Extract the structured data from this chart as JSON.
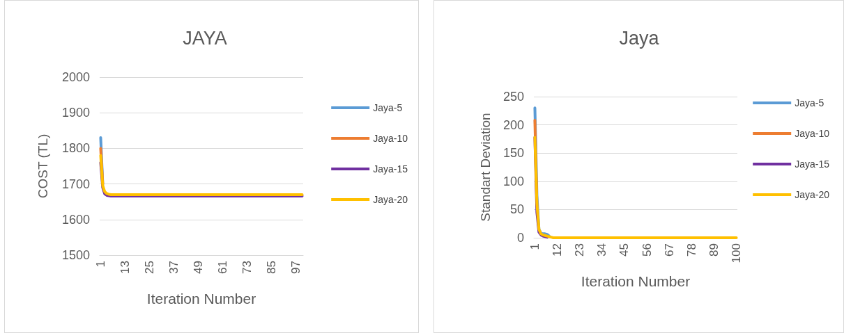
{
  "chart_data": [
    {
      "type": "line",
      "title": "JAYA",
      "xlabel": "Iteration Number",
      "ylabel": "COST (TL)",
      "ylim": [
        1500,
        2000
      ],
      "yticks": [
        1500,
        1600,
        1700,
        1800,
        1900,
        2000
      ],
      "grid": "y",
      "legend": "right",
      "marker": "none",
      "line_style": "solid",
      "categories": [
        "1",
        null,
        null,
        null,
        null,
        null,
        null,
        null,
        null,
        null,
        null,
        null,
        "13",
        null,
        null,
        null,
        null,
        null,
        null,
        null,
        null,
        null,
        null,
        null,
        "25",
        null,
        null,
        null,
        null,
        null,
        null,
        null,
        null,
        null,
        null,
        null,
        "37",
        null,
        null,
        null,
        null,
        null,
        null,
        null,
        null,
        null,
        null,
        null,
        "49",
        null,
        null,
        null,
        null,
        null,
        null,
        null,
        null,
        null,
        null,
        null,
        "61",
        null,
        null,
        null,
        null,
        null,
        null,
        null,
        null,
        null,
        null,
        null,
        "73",
        null,
        null,
        null,
        null,
        null,
        null,
        null,
        null,
        null,
        null,
        null,
        "85",
        null,
        null,
        null,
        null,
        null,
        null,
        null,
        null,
        null,
        null,
        null,
        "97",
        null,
        null,
        null
      ],
      "series": [
        {
          "name": "Jaya-5",
          "color": "#5b9bd5",
          "values": [
            1830,
            1700,
            null,
            null,
            null,
            null,
            null,
            null,
            null,
            null,
            null,
            null,
            null,
            null,
            null,
            null,
            null,
            null,
            null,
            null,
            null,
            null,
            null,
            null,
            null,
            null,
            null,
            null,
            null,
            null,
            null,
            null,
            null,
            null,
            null,
            null,
            null,
            null,
            null,
            null,
            null,
            null,
            null,
            null,
            null,
            null,
            null,
            null,
            null,
            null,
            null,
            null,
            null,
            null,
            null,
            null,
            null,
            null,
            null,
            null,
            null,
            null,
            null,
            null,
            null,
            null,
            null,
            null,
            null,
            null,
            null,
            null,
            null,
            null,
            null,
            null,
            null,
            null,
            null,
            null,
            null,
            null,
            null,
            null,
            null,
            null,
            null,
            null,
            null,
            null,
            null,
            null,
            null,
            null,
            null,
            null,
            null,
            null,
            null,
            null
          ]
        },
        {
          "name": "Jaya-10",
          "color": "#ed7d31",
          "values": [
            1800,
            1700,
            null,
            null,
            null,
            null,
            null,
            null,
            null,
            null,
            null,
            null,
            null,
            null,
            null,
            null,
            null,
            null,
            null,
            null,
            null,
            null,
            null,
            null,
            null,
            null,
            null,
            null,
            null,
            null,
            null,
            null,
            null,
            null,
            null,
            null,
            null,
            null,
            null,
            null,
            null,
            null,
            null,
            null,
            null,
            null,
            null,
            null,
            null,
            null,
            null,
            null,
            null,
            null,
            null,
            null,
            null,
            null,
            null,
            null,
            null,
            null,
            null,
            null,
            null,
            null,
            null,
            null,
            null,
            null,
            null,
            null,
            null,
            null,
            null,
            null,
            null,
            null,
            null,
            null,
            null,
            null,
            null,
            null,
            null,
            null,
            null,
            null,
            null,
            null,
            null,
            null,
            null,
            null,
            null,
            null,
            null,
            null,
            null,
            null
          ]
        },
        {
          "name": "Jaya-15",
          "color": "#7030a0",
          "values": [
            1760,
            1690,
            1672,
            1668,
            1667,
            1666,
            1666,
            1666,
            1666,
            1666,
            1666,
            1666,
            1666,
            1666,
            1666,
            1666,
            1666,
            1666,
            1666,
            1666,
            1666,
            1666,
            1666,
            1666,
            1666,
            1666,
            1666,
            1666,
            1666,
            1666,
            1666,
            1666,
            1666,
            1666,
            1666,
            1666,
            1666,
            1666,
            1666,
            1666,
            1666,
            1666,
            1666,
            1666,
            1666,
            1666,
            1666,
            1666,
            1666,
            1666,
            1666,
            1666,
            1666,
            1666,
            1666,
            1666,
            1666,
            1666,
            1666,
            1666,
            1666,
            1666,
            1666,
            1666,
            1666,
            1666,
            1666,
            1666,
            1666,
            1666,
            1666,
            1666,
            1666,
            1666,
            1666,
            1666,
            1666,
            1666,
            1666,
            1666,
            1666,
            1666,
            1666,
            1666,
            1666,
            1666,
            1666,
            1666,
            1666,
            1666,
            1666,
            1666,
            1666,
            1666,
            1666,
            1666,
            1666,
            1666,
            1666,
            1666
          ]
        },
        {
          "name": "Jaya-20",
          "color": "#ffc000",
          "values": [
            1780,
            1695,
            1678,
            1673,
            1671,
            1670,
            1670,
            1670,
            1670,
            1670,
            1670,
            1670,
            1670,
            1670,
            1670,
            1670,
            1670,
            1670,
            1670,
            1670,
            1670,
            1670,
            1670,
            1670,
            1670,
            1670,
            1670,
            1670,
            1670,
            1670,
            1670,
            1670,
            1670,
            1670,
            1670,
            1670,
            1670,
            1670,
            1670,
            1670,
            1670,
            1670,
            1670,
            1670,
            1670,
            1670,
            1670,
            1670,
            1670,
            1670,
            1670,
            1670,
            1670,
            1670,
            1670,
            1670,
            1670,
            1670,
            1670,
            1670,
            1670,
            1670,
            1670,
            1670,
            1670,
            1670,
            1670,
            1670,
            1670,
            1670,
            1670,
            1670,
            1670,
            1670,
            1670,
            1670,
            1670,
            1670,
            1670,
            1670,
            1670,
            1670,
            1670,
            1670,
            1670,
            1670,
            1670,
            1670,
            1670,
            1670,
            1670,
            1670,
            1670,
            1670,
            1670,
            1670,
            1670,
            1670,
            1670,
            1670
          ]
        }
      ]
    },
    {
      "type": "line",
      "title": "Jaya",
      "xlabel": "Iteration Number",
      "ylabel": "Standart Deviation",
      "ylim": [
        0,
        250
      ],
      "yticks": [
        0,
        50,
        100,
        150,
        200,
        250
      ],
      "grid": "y",
      "legend": "right",
      "marker": "none",
      "line_style": "solid",
      "categories": [
        "1",
        null,
        null,
        null,
        null,
        null,
        null,
        null,
        null,
        null,
        null,
        "12",
        null,
        null,
        null,
        null,
        null,
        null,
        null,
        null,
        null,
        null,
        "23",
        null,
        null,
        null,
        null,
        null,
        null,
        null,
        null,
        null,
        null,
        "34",
        null,
        null,
        null,
        null,
        null,
        null,
        null,
        null,
        null,
        null,
        "45",
        null,
        null,
        null,
        null,
        null,
        null,
        null,
        null,
        null,
        null,
        "56",
        null,
        null,
        null,
        null,
        null,
        null,
        null,
        null,
        null,
        null,
        "67",
        null,
        null,
        null,
        null,
        null,
        null,
        null,
        null,
        null,
        null,
        "78",
        null,
        null,
        null,
        null,
        null,
        null,
        null,
        null,
        null,
        null,
        "89",
        null,
        null,
        null,
        null,
        null,
        null,
        null,
        null,
        null,
        null,
        "100"
      ],
      "series": [
        {
          "name": "Jaya-5",
          "color": "#5b9bd5",
          "values": [
            230,
            75,
            15,
            8,
            7,
            7,
            6,
            3,
            null,
            null,
            null,
            null,
            null,
            null,
            null,
            null,
            null,
            null,
            null,
            null,
            null,
            null,
            null,
            null,
            null,
            null,
            null,
            null,
            null,
            null,
            null,
            null,
            null,
            null,
            null,
            null,
            null,
            null,
            null,
            null,
            null,
            null,
            null,
            null,
            null,
            null,
            null,
            null,
            null,
            null,
            null,
            null,
            null,
            null,
            null,
            null,
            null,
            null,
            null,
            null,
            null,
            null,
            null,
            null,
            null,
            null,
            null,
            null,
            null,
            null,
            null,
            null,
            null,
            null,
            null,
            null,
            null,
            null,
            null,
            null,
            null,
            null,
            null,
            null,
            null,
            null,
            null,
            null,
            null,
            null,
            null,
            null,
            null,
            null,
            null,
            null,
            null,
            null,
            null,
            null
          ]
        },
        {
          "name": "Jaya-10",
          "color": "#ed7d31",
          "values": [
            208,
            55,
            null,
            null,
            null,
            null,
            null,
            null,
            null,
            null,
            null,
            null,
            null,
            null,
            null,
            null,
            null,
            null,
            null,
            null,
            null,
            null,
            null,
            null,
            null,
            null,
            null,
            null,
            null,
            null,
            null,
            null,
            null,
            null,
            null,
            null,
            null,
            null,
            null,
            null,
            null,
            null,
            null,
            null,
            null,
            null,
            null,
            null,
            null,
            null,
            null,
            null,
            null,
            null,
            null,
            null,
            null,
            null,
            null,
            null,
            null,
            null,
            null,
            null,
            null,
            null,
            null,
            null,
            null,
            null,
            null,
            null,
            null,
            null,
            null,
            null,
            null,
            null,
            null,
            null,
            null,
            null,
            null,
            null,
            null,
            null,
            null,
            null,
            null,
            null,
            null,
            null,
            null,
            null,
            null,
            null,
            null,
            null,
            null,
            null
          ]
        },
        {
          "name": "Jaya-15",
          "color": "#7030a0",
          "values": [
            178,
            45,
            10,
            5,
            3,
            2,
            1,
            null,
            null,
            null,
            null,
            null,
            null,
            null,
            null,
            null,
            null,
            null,
            null,
            null,
            null,
            null,
            null,
            null,
            null,
            null,
            null,
            null,
            null,
            null,
            null,
            null,
            null,
            null,
            null,
            null,
            null,
            null,
            null,
            null,
            null,
            null,
            null,
            null,
            null,
            null,
            null,
            null,
            null,
            null,
            null,
            null,
            null,
            null,
            null,
            null,
            null,
            null,
            null,
            null,
            null,
            null,
            null,
            null,
            null,
            null,
            null,
            null,
            null,
            null,
            null,
            null,
            null,
            null,
            null,
            null,
            null,
            null,
            null,
            null,
            null,
            null,
            null,
            null,
            null,
            null,
            null,
            null,
            null,
            null,
            null,
            null,
            null,
            null,
            null,
            null,
            null,
            null,
            null,
            null
          ]
        },
        {
          "name": "Jaya-20",
          "color": "#ffc000",
          "values": [
            178,
            60,
            15,
            7,
            5,
            4,
            3,
            2,
            1,
            0,
            0,
            0,
            0,
            0,
            0,
            0,
            0,
            0,
            0,
            0,
            0,
            0,
            0,
            0,
            0,
            0,
            0,
            0,
            0,
            0,
            0,
            0,
            0,
            0,
            0,
            0,
            0,
            0,
            0,
            0,
            0,
            0,
            0,
            0,
            0,
            0,
            0,
            0,
            0,
            0,
            0,
            0,
            0,
            0,
            0,
            0,
            0,
            0,
            0,
            0,
            0,
            0,
            0,
            0,
            0,
            0,
            0,
            0,
            0,
            0,
            0,
            0,
            0,
            0,
            0,
            0,
            0,
            0,
            0,
            0,
            0,
            0,
            0,
            0,
            0,
            0,
            0,
            0,
            0,
            0,
            0,
            0,
            0,
            0,
            0,
            0,
            0,
            0,
            0,
            0
          ]
        }
      ]
    }
  ]
}
